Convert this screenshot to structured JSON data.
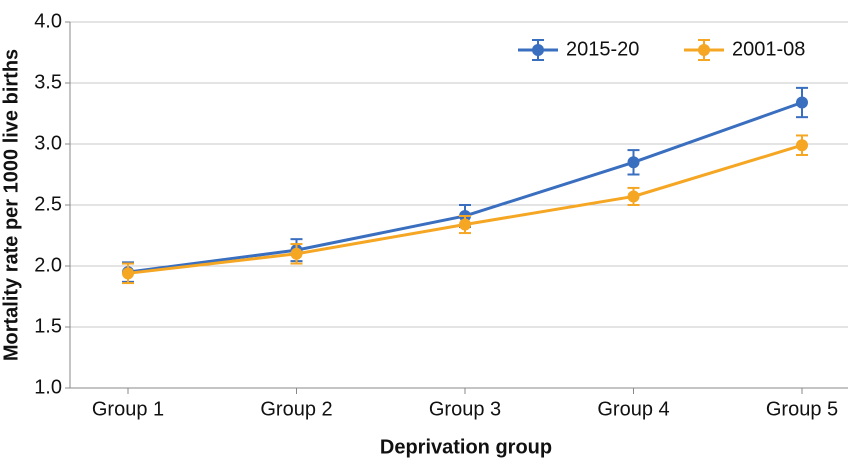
{
  "chart_data": {
    "type": "line",
    "x_label": "Deprivation group",
    "y_label": "Mortality rate per 1000 live births",
    "categories": [
      "Group 1",
      "Group 2",
      "Group 3",
      "Group 4",
      "Group 5"
    ],
    "series": [
      {
        "name": "2015-20",
        "color": "#3a6fbf",
        "values": [
          1.95,
          2.13,
          2.41,
          2.85,
          3.34
        ],
        "errors": [
          0.08,
          0.09,
          0.09,
          0.1,
          0.12
        ]
      },
      {
        "name": "2001-08",
        "color": "#f5a623",
        "values": [
          1.94,
          2.1,
          2.34,
          2.57,
          2.99
        ],
        "errors": [
          0.08,
          0.08,
          0.07,
          0.07,
          0.08
        ]
      }
    ],
    "ylim": [
      1.0,
      4.0
    ],
    "yticks": [
      {
        "value": 1.0,
        "label": "1.0"
      },
      1.5,
      {
        "value": 2.0,
        "label": "2.0"
      },
      2.5,
      {
        "value": 3.0,
        "label": "3.0"
      },
      3.5,
      {
        "value": 4.0,
        "label": "4.0"
      }
    ],
    "grid": true,
    "legend": "top-right"
  }
}
